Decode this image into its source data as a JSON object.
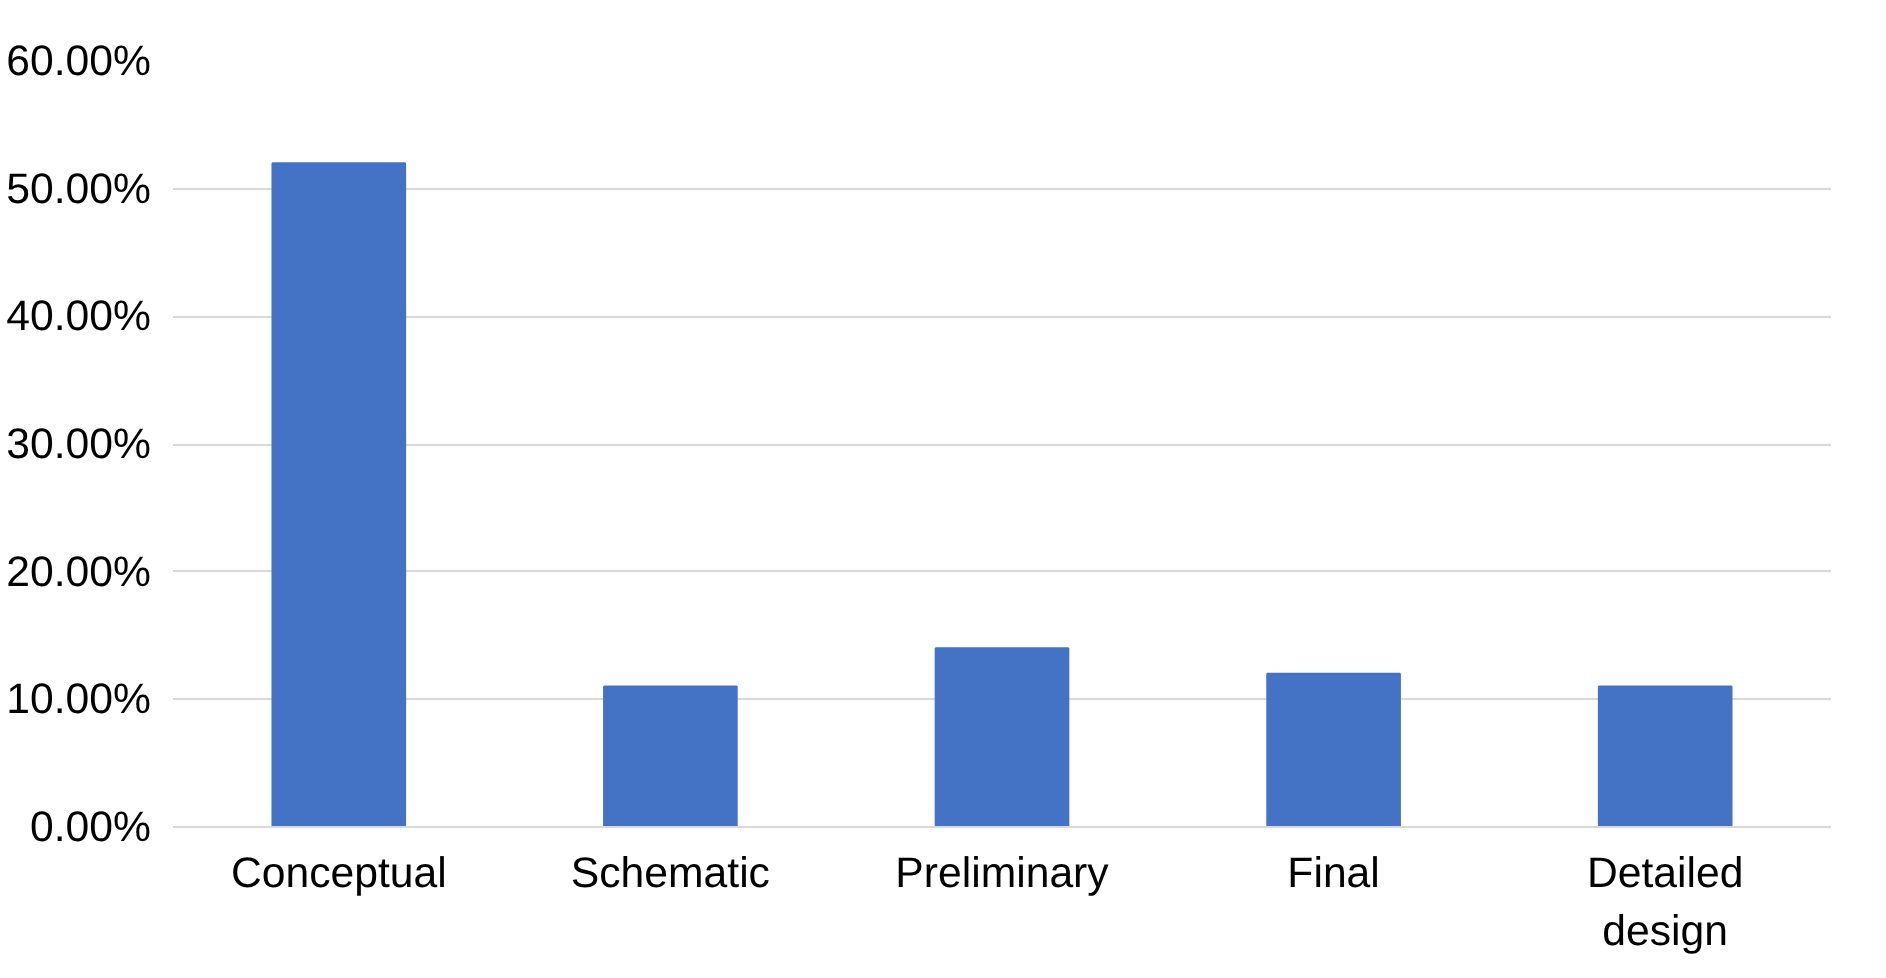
{
  "chart_data": {
    "type": "bar",
    "categories": [
      "Conceptual",
      "Schematic",
      "Preliminary",
      "Final",
      "Detailed design"
    ],
    "values": [
      52,
      11,
      14,
      12,
      11
    ],
    "color": "#4472c4",
    "ylim": [
      0,
      60
    ],
    "yticks": [
      {
        "value": 0,
        "label": "0.00%"
      },
      {
        "value": 10,
        "label": "10.00%"
      },
      {
        "value": 20,
        "label": "20.00%"
      },
      {
        "value": 30,
        "label": "30.00%"
      },
      {
        "value": 40,
        "label": "40.00%"
      },
      {
        "value": 50,
        "label": "50.00%"
      },
      {
        "value": 60,
        "label": "60.00%"
      }
    ],
    "grid": "y"
  }
}
